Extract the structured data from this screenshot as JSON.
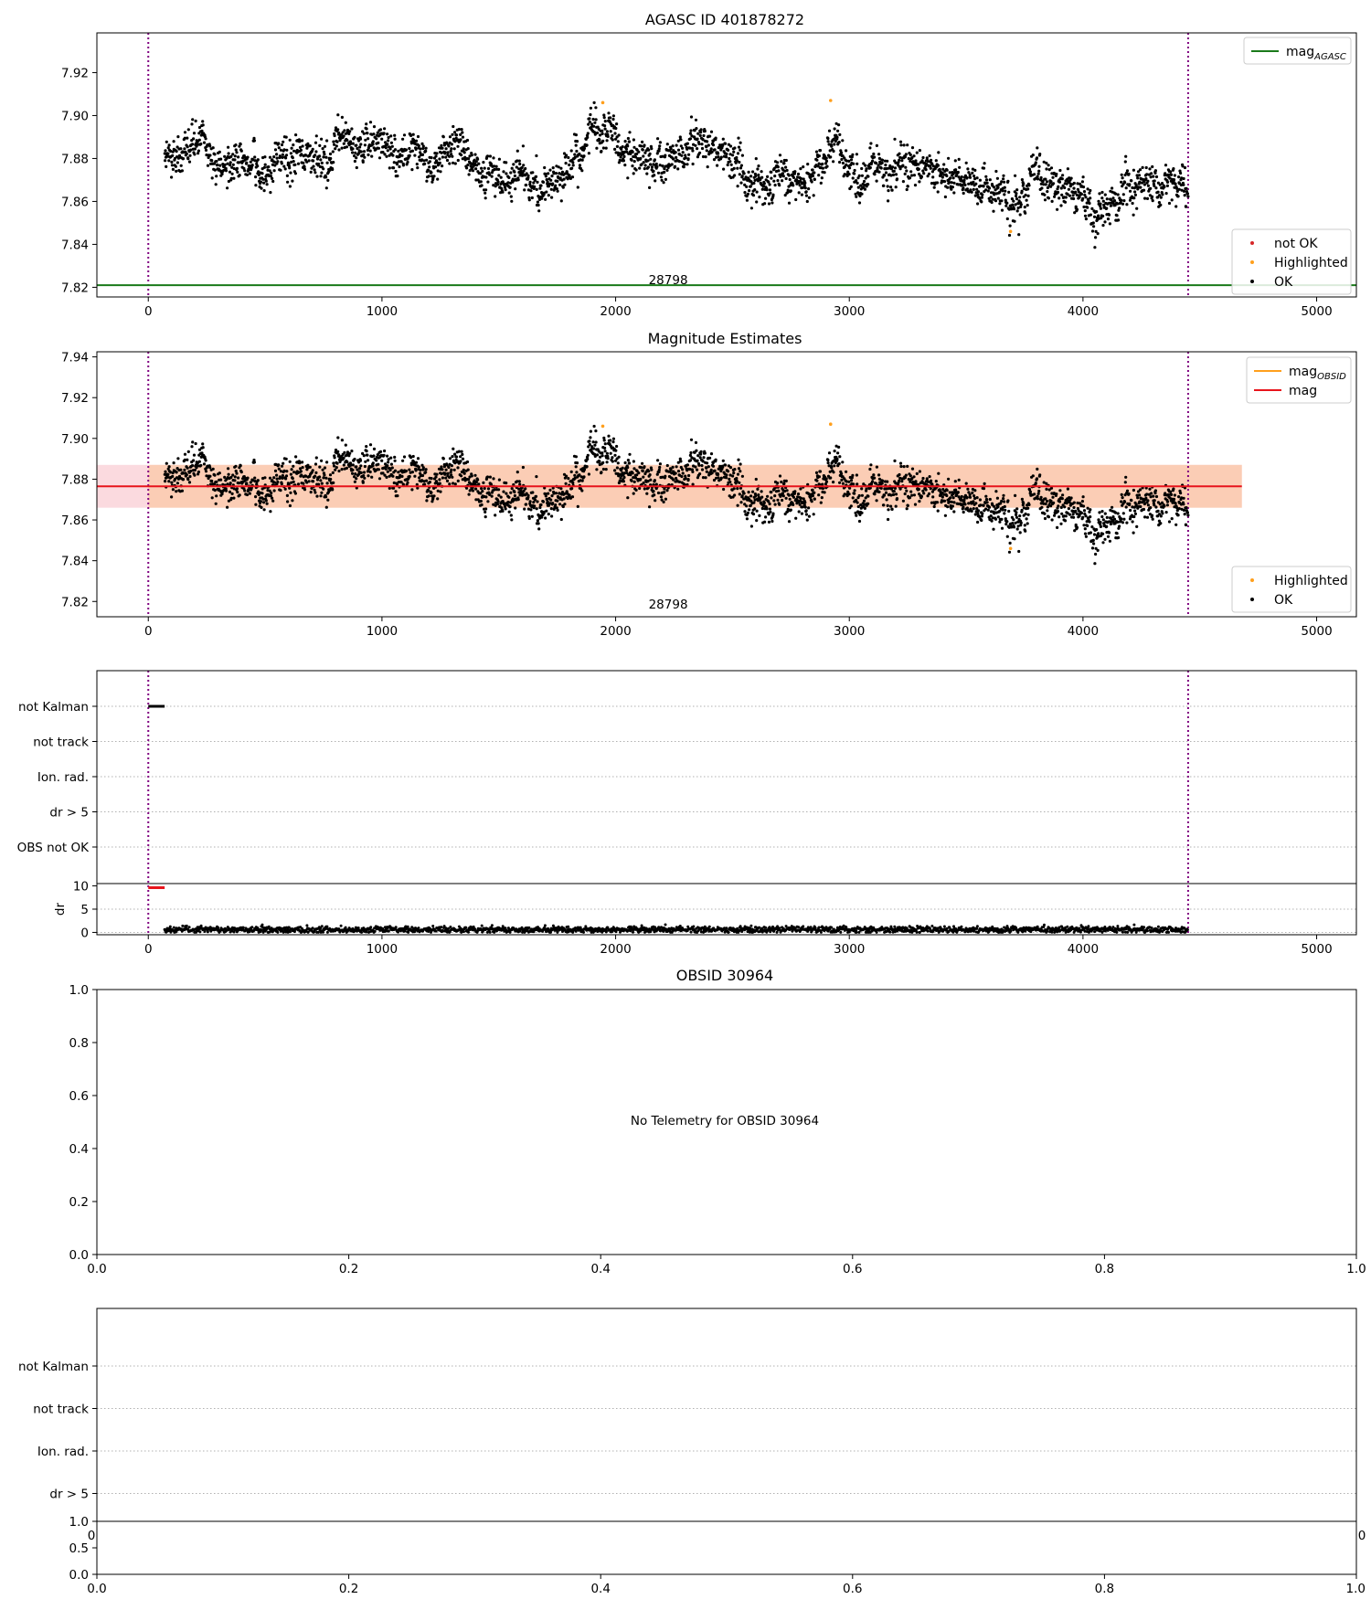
{
  "chart_data": [
    {
      "id": "p1",
      "type": "scatter",
      "title": "AGASC ID 401878272",
      "xlim": [
        -220,
        5170
      ],
      "ylim": [
        7.8155,
        7.9385
      ],
      "xticks": [
        0,
        1000,
        2000,
        3000,
        4000,
        5000
      ],
      "yticks": [
        7.82,
        7.84,
        7.86,
        7.88,
        7.9,
        7.92
      ],
      "ytick_labels": [
        "7.82",
        "7.84",
        "7.86",
        "7.88",
        "7.90",
        "7.92"
      ],
      "vlines": [
        0,
        4450
      ],
      "annotation": {
        "text": "28798",
        "x": 2225,
        "y": 7.8215
      },
      "hline": {
        "name": "mag",
        "name_sub": "AGASC",
        "y": 7.821,
        "color": "#1a7a1a"
      },
      "legend_top": {
        "position": "top-right",
        "entries": [
          {
            "label": "mag",
            "sub": "AGASC",
            "color": "#1a7a1a",
            "kind": "line"
          }
        ]
      },
      "legend_bottom": {
        "position": "bottom-right",
        "entries": [
          {
            "label": "not OK",
            "color": "#d62728",
            "kind": "dot"
          },
          {
            "label": "Highlighted",
            "color": "#ff9f1c",
            "kind": "dot"
          },
          {
            "label": "OK",
            "color": "#000000",
            "kind": "dot"
          }
        ]
      },
      "series": {
        "x_start": 70,
        "x_end": 4450,
        "profile": [
          [
            70,
            7.882
          ],
          [
            200,
            7.888
          ],
          [
            300,
            7.88
          ],
          [
            450,
            7.876
          ],
          [
            550,
            7.888
          ],
          [
            700,
            7.876
          ],
          [
            850,
            7.884
          ],
          [
            1000,
            7.886
          ],
          [
            1100,
            7.878
          ],
          [
            1250,
            7.882
          ],
          [
            1350,
            7.885
          ],
          [
            1450,
            7.87
          ],
          [
            1600,
            7.872
          ],
          [
            1800,
            7.873
          ],
          [
            1900,
            7.893
          ],
          [
            2000,
            7.885
          ],
          [
            2200,
            7.876
          ],
          [
            2400,
            7.887
          ],
          [
            2550,
            7.873
          ],
          [
            2700,
            7.866
          ],
          [
            2800,
            7.876
          ],
          [
            2900,
            7.877
          ],
          [
            2950,
            7.888
          ],
          [
            3050,
            7.868
          ],
          [
            3200,
            7.87
          ],
          [
            3350,
            7.877
          ],
          [
            3500,
            7.868
          ],
          [
            3650,
            7.866
          ],
          [
            3700,
            7.852
          ],
          [
            3800,
            7.876
          ],
          [
            3900,
            7.866
          ],
          [
            4050,
            7.858
          ],
          [
            4200,
            7.864
          ],
          [
            4450,
            7.868
          ]
        ],
        "noise": 0.0075,
        "highlights": [
          [
            1945,
            7.906
          ],
          [
            2920,
            7.907
          ],
          [
            3690,
            7.846
          ]
        ]
      }
    },
    {
      "id": "p2",
      "type": "scatter",
      "title": "Magnitude Estimates",
      "xlim": [
        -220,
        5170
      ],
      "ylim": [
        7.8125,
        7.9425
      ],
      "xticks": [
        0,
        1000,
        2000,
        3000,
        4000,
        5000
      ],
      "yticks": [
        7.82,
        7.84,
        7.86,
        7.88,
        7.9,
        7.92,
        7.94
      ],
      "ytick_labels": [
        "7.82",
        "7.84",
        "7.86",
        "7.88",
        "7.90",
        "7.92",
        "7.94"
      ],
      "vlines": [
        0,
        4450
      ],
      "annotation": {
        "text": "28798",
        "x": 2225,
        "y": 7.8165
      },
      "mag_line": {
        "name": "mag",
        "y": 7.8765,
        "x0": -220,
        "x1": 4680,
        "band": [
          7.866,
          7.887
        ],
        "color": "#e8141c",
        "band_color": "#f7b6c0"
      },
      "obsid_band": {
        "name": "mag",
        "name_sub": "OBSID",
        "x0": 0,
        "x1": 4680,
        "band": [
          7.866,
          7.887
        ],
        "color": "#ff9f1c",
        "band_color": "#fbc59a"
      },
      "legend_top": {
        "position": "top-right",
        "entries": [
          {
            "label": "mag",
            "sub": "OBSID",
            "color": "#ff9f1c",
            "kind": "line"
          },
          {
            "label": "mag",
            "sub": "",
            "color": "#e8141c",
            "kind": "line"
          }
        ]
      },
      "legend_bottom": {
        "position": "bottom-right",
        "entries": [
          {
            "label": "Highlighted",
            "color": "#ff9f1c",
            "kind": "dot"
          },
          {
            "label": "OK",
            "color": "#000000",
            "kind": "dot"
          }
        ]
      }
    },
    {
      "id": "p3",
      "type": "scatter",
      "title": "",
      "xlim": [
        -220,
        5170
      ],
      "xticks": [
        0,
        1000,
        2000,
        3000,
        4000,
        5000
      ],
      "vlines": [
        0,
        4450
      ],
      "flag_labels": [
        "not Kalman",
        "not track",
        "Ion. rad.",
        "dr > 5",
        "OBS not OK"
      ],
      "flag_segments": [
        {
          "flag": "not Kalman",
          "x0": 0,
          "x1": 70
        }
      ],
      "dr": {
        "ylabel": "dr",
        "yticks": [
          0,
          5,
          10
        ],
        "ylim": [
          -0.5,
          10.5
        ],
        "x_start": 70,
        "x_end": 4450,
        "mean": 0.6,
        "spread": 0.35,
        "red_segment": {
          "x0": 0,
          "x1": 70,
          "y": 10
        }
      }
    },
    {
      "id": "p4",
      "type": "scatter",
      "title": "OBSID 30964",
      "xlim": [
        0,
        1
      ],
      "ylim": [
        0,
        1
      ],
      "xticks": [
        0,
        0.2,
        0.4,
        0.6,
        0.8,
        1.0
      ],
      "xtick_labels": [
        "0.0",
        "0.2",
        "0.4",
        "0.6",
        "0.8",
        "1.0"
      ],
      "yticks": [
        0,
        0.2,
        0.4,
        0.6,
        0.8,
        1.0
      ],
      "ytick_labels": [
        "0.0",
        "0.2",
        "0.4",
        "0.6",
        "0.8",
        "1.0"
      ],
      "message": "No Telemetry for OBSID 30964"
    },
    {
      "id": "p5",
      "type": "scatter",
      "title": "",
      "flag_labels": [
        "not Kalman",
        "not track",
        "Ion. rad.",
        "dr > 5"
      ],
      "xticks": [
        0,
        0.2,
        0.4,
        0.6,
        0.8,
        1.0
      ],
      "xtick_labels": [
        "0.0",
        "0.2",
        "0.4",
        "0.6",
        "0.8",
        "1.0"
      ],
      "yticks": [
        0,
        0.5,
        1.0
      ],
      "ytick_labels": [
        "0.0",
        "0.5",
        "1.0"
      ],
      "overlap_tick_left": "0",
      "overlap_tick_right": "0"
    }
  ]
}
